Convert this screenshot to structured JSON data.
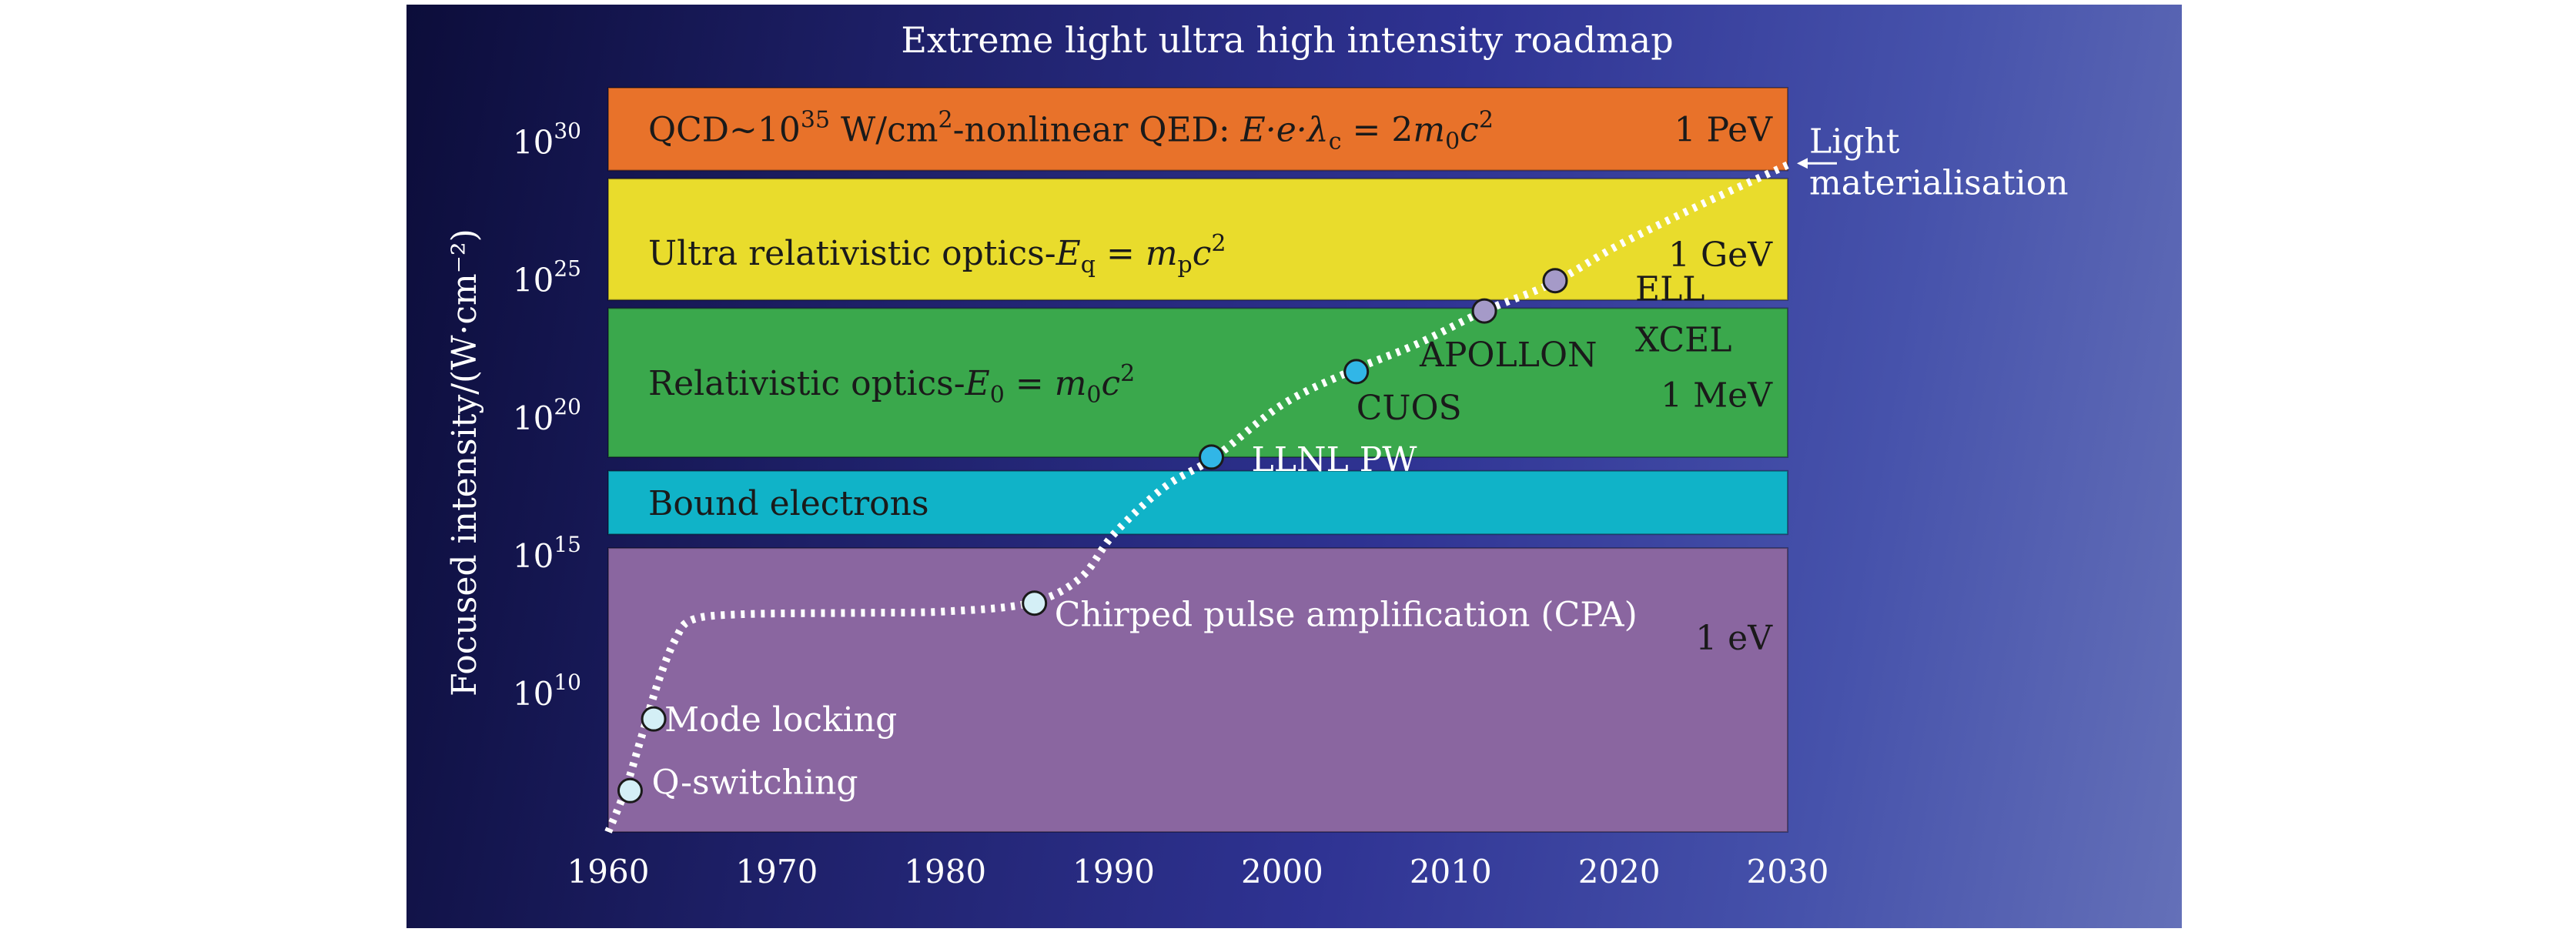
{
  "chart_data": {
    "type": "line",
    "title": "Extreme light ultra high intensity roadmap",
    "xlabel": "",
    "ylabel": "Focused intensity/(W·cm⁻²)",
    "xlim": [
      1960,
      2030
    ],
    "ylim": [
      5,
      32
    ],
    "y_scale": "log10",
    "x_ticks": [
      "1960",
      "1970",
      "1980",
      "1990",
      "2000",
      "2010",
      "2020",
      "2030"
    ],
    "y_ticks": [
      {
        "base": "10",
        "exp": "30",
        "value": 30
      },
      {
        "base": "10",
        "exp": "25",
        "value": 25
      },
      {
        "base": "10",
        "exp": "20",
        "value": 20
      },
      {
        "base": "10",
        "exp": "15",
        "value": 15
      },
      {
        "base": "10",
        "exp": "10",
        "value": 10
      }
    ],
    "bands": [
      {
        "name": "qcd",
        "y_from": 29.0,
        "y_to": 32.0,
        "color": "#e8722a",
        "label_parts": [
          {
            "t": "QCD~10"
          },
          {
            "t": "35",
            "sup": true
          },
          {
            "t": " W/cm"
          },
          {
            "t": "2",
            "sup": true
          },
          {
            "t": "-nonlinear QED: "
          },
          {
            "t": "E·e·λ",
            "italic": true
          },
          {
            "t": "c",
            "sub": true
          },
          {
            "t": " = 2"
          },
          {
            "t": "m",
            "italic": true
          },
          {
            "t": "0",
            "sub": true
          },
          {
            "t": "c",
            "italic": true
          },
          {
            "t": "2",
            "sup": true
          }
        ],
        "energy": "1 PeV"
      },
      {
        "name": "ultra-relativistic",
        "y_from": 24.3,
        "y_to": 28.7,
        "color": "#e9dc2c",
        "label_parts": [
          {
            "t": "Ultra relativistic optics-"
          },
          {
            "t": "E",
            "italic": true
          },
          {
            "t": "q",
            "sub": true
          },
          {
            "t": " = "
          },
          {
            "t": "m",
            "italic": true
          },
          {
            "t": "p",
            "sub": true
          },
          {
            "t": "c",
            "italic": true
          },
          {
            "t": "2",
            "sup": true
          }
        ],
        "energy": "1 GeV"
      },
      {
        "name": "relativistic",
        "y_from": 18.6,
        "y_to": 24.0,
        "color": "#3aa84c",
        "label_parts": [
          {
            "t": "Relativistic optics-"
          },
          {
            "t": "E",
            "italic": true
          },
          {
            "t": "0",
            "sub": true
          },
          {
            "t": " = "
          },
          {
            "t": "m",
            "italic": true
          },
          {
            "t": "0",
            "sub": true
          },
          {
            "t": "c",
            "italic": true
          },
          {
            "t": "2",
            "sup": true
          }
        ],
        "energy": "1 MeV"
      },
      {
        "name": "bound-electrons",
        "y_from": 15.8,
        "y_to": 18.1,
        "color": "#10b3c8",
        "label_parts": [
          {
            "t": "Bound electrons"
          }
        ],
        "energy": ""
      },
      {
        "name": "atomic",
        "y_from": 5.0,
        "y_to": 15.3,
        "color": "#8a66a0",
        "label_parts": [],
        "energy": "1 eV"
      }
    ],
    "series": [
      {
        "values": [
          [
            1960,
            5.0
          ],
          [
            1961,
            6.5
          ],
          [
            1962,
            8.5
          ],
          [
            1963,
            10.5
          ],
          [
            1964,
            12.0
          ],
          [
            1965,
            12.7
          ],
          [
            1968,
            12.9
          ],
          [
            1975,
            12.95
          ],
          [
            1980,
            13.0
          ],
          [
            1985,
            13.3
          ],
          [
            1988,
            14.2
          ],
          [
            1990,
            15.8
          ],
          [
            1993,
            17.5
          ],
          [
            1996,
            18.6
          ],
          [
            2000,
            20.5
          ],
          [
            2004,
            21.7
          ],
          [
            2008,
            22.7
          ],
          [
            2012,
            23.9
          ],
          [
            2016,
            24.9
          ],
          [
            2020,
            26.3
          ],
          [
            2025,
            27.8
          ],
          [
            2030,
            29.2
          ]
        ]
      }
    ],
    "points": [
      {
        "name": "q-switching",
        "x": 1961.3,
        "y": 6.5,
        "color": "#d4eff6",
        "label": "Q-switching"
      },
      {
        "name": "mode-locking",
        "x": 1962.7,
        "y": 9.1,
        "color": "#d4eff6",
        "label": "Mode locking"
      },
      {
        "name": "cpa",
        "x": 1985.3,
        "y": 13.3,
        "color": "#d4eff6",
        "label": "Chirped pulse amplification (CPA)"
      },
      {
        "name": "llnl-pw",
        "x": 1995.8,
        "y": 18.6,
        "color": "#31b6e7",
        "label": "LLNL PW"
      },
      {
        "name": "cuos",
        "x": 2004.4,
        "y": 21.7,
        "color": "#31b6e7",
        "label": "CUOS"
      },
      {
        "name": "apollon",
        "x": 2012.0,
        "y": 23.9,
        "color": "#a59ac8",
        "label": "APOLLON"
      },
      {
        "name": "ell",
        "x": 2016.2,
        "y": 25.0,
        "color": "#a59ac8",
        "label": "ELL"
      }
    ],
    "extra_labels": {
      "xcel": "XCEL",
      "light_materialisation": [
        "Light",
        "materialisation"
      ]
    }
  }
}
